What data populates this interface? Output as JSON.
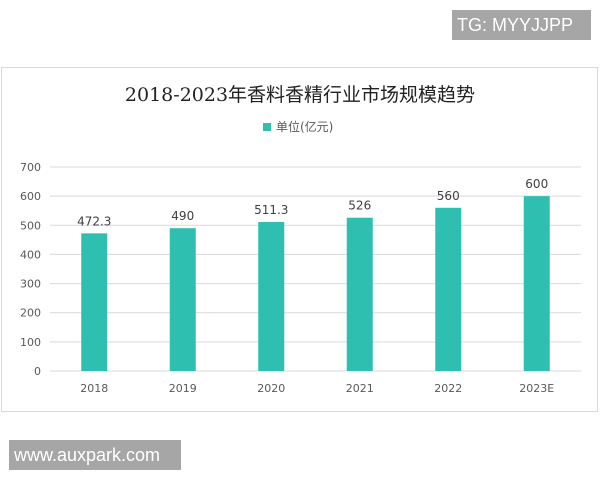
{
  "watermarks": {
    "top": "TG: MYYJJPP",
    "bottom": "www.auxpark.com"
  },
  "chart_data": {
    "type": "bar",
    "title": "2018-2023年香料香精行业市场规模趋势",
    "legend": {
      "entries": [
        "单位(亿元)"
      ],
      "placement": "top"
    },
    "categories": [
      "2018",
      "2019",
      "2020",
      "2021",
      "2022",
      "2023E"
    ],
    "series": [
      {
        "name": "单位(亿元)",
        "values": [
          472.3,
          490,
          511.3,
          526,
          560,
          600
        ],
        "color": "#2ebfb0"
      }
    ],
    "data_labels": [
      "472.3",
      "490",
      "511.3",
      "526",
      "560",
      "600"
    ],
    "ylim": [
      0,
      700
    ],
    "yticks": [
      0,
      100,
      200,
      300,
      400,
      500,
      600,
      700
    ],
    "grid": true,
    "xlabel": "",
    "ylabel": ""
  }
}
